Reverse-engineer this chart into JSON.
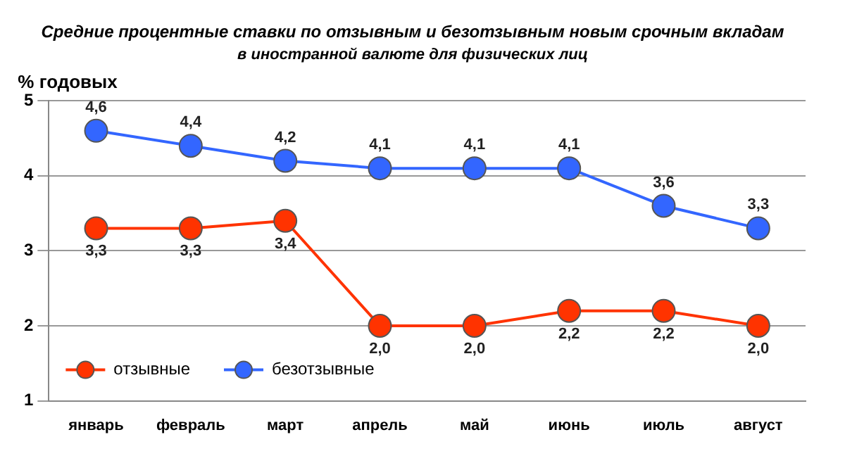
{
  "chart_data": {
    "type": "line",
    "title": "Средние процентные ставки по отзывным и безотзывным новым срочным вкладам",
    "subtitle": "в иностранной валюте для физических лиц",
    "ylabel": "% годовых",
    "categories": [
      "январь",
      "февраль",
      "март",
      "апрель",
      "май",
      "июнь",
      "июль",
      "август"
    ],
    "series": [
      {
        "name": "отзывные",
        "color": "#ff3300",
        "values": [
          3.3,
          3.3,
          3.4,
          2.0,
          2.0,
          2.2,
          2.2,
          2.0
        ],
        "value_labels": [
          "3,3",
          "3,3",
          "3,4",
          "2,0",
          "2,0",
          "2,2",
          "2,2",
          "2,0"
        ]
      },
      {
        "name": "безотзывные",
        "color": "#3366ff",
        "values": [
          4.6,
          4.4,
          4.2,
          4.1,
          4.1,
          4.1,
          3.6,
          3.3
        ],
        "value_labels": [
          "4,6",
          "4,4",
          "4,2",
          "4,1",
          "4,1",
          "4,1",
          "3,6",
          "3,3"
        ]
      }
    ],
    "ylim": [
      1,
      5
    ],
    "yticks": [
      1,
      2,
      3,
      4,
      5
    ],
    "grid": "y",
    "legend": "bottom left",
    "marker": "circle",
    "line_style": "solid"
  }
}
